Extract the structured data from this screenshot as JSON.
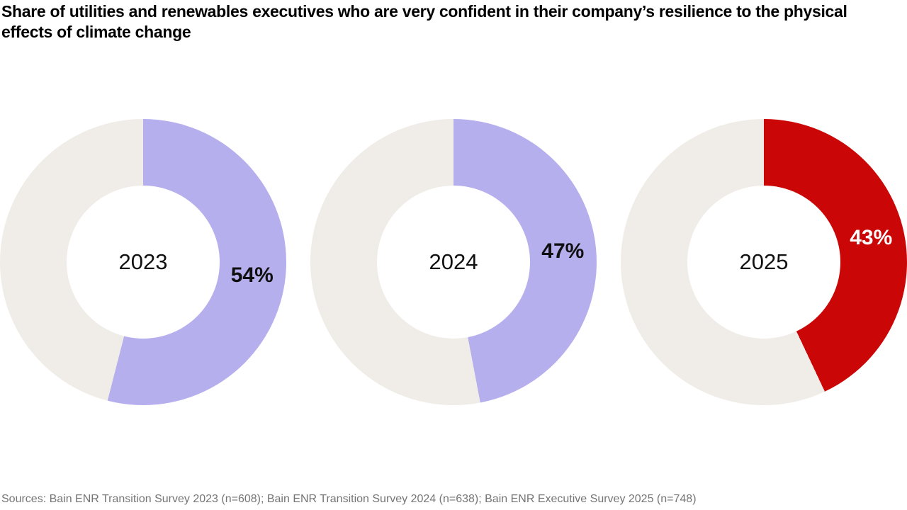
{
  "header": {
    "title": "Share of utilities and renewables executives who are very confident in their company’s resilience to the physical effects of climate change"
  },
  "footer": {
    "source_note": "Sources: Bain ENR Transition Survey 2023 (n=608); Bain ENR Transition Survey 2024 (n=638); Bain ENR Executive Survey 2025 (n=748)"
  },
  "colors": {
    "confident_fill_2023_2024": "#b6afee",
    "confident_fill_2025": "#cb0606",
    "remainder_track": "#f0ece7",
    "title_text": "#000000",
    "source_text": "#757575"
  },
  "chart_data": {
    "type": "pie",
    "subtype": "donut",
    "title": "Share of utilities and renewables executives who are very confident in their company’s resilience to the physical effects of climate change",
    "legend": "none",
    "start_angle_deg": 0,
    "direction": "clockwise",
    "donuts": [
      {
        "label": "2023",
        "value": 54,
        "value_label": "54%",
        "fill_color": "#b6afee",
        "track_color": "#f0ece7",
        "value_label_color": "#0f0f0f"
      },
      {
        "label": "2024",
        "value": 47,
        "value_label": "47%",
        "fill_color": "#b6afee",
        "track_color": "#f0ece7",
        "value_label_color": "#0f0f0f"
      },
      {
        "label": "2025",
        "value": 43,
        "value_label": "43%",
        "fill_color": "#cb0606",
        "track_color": "#f0ece7",
        "value_label_color": "#ffffff"
      }
    ],
    "source_note": "Sources: Bain ENR Transition Survey 2023 (n=608); Bain ENR Transition Survey 2024 (n=638); Bain ENR Executive Survey 2025 (n=748)"
  }
}
